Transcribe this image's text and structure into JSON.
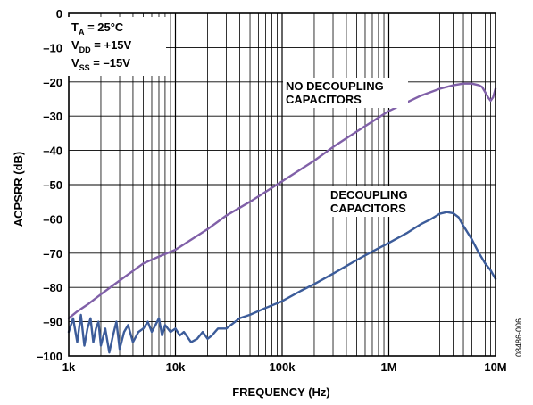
{
  "chart_data": {
    "type": "line",
    "xlabel": "FREQUENCY (Hz)",
    "ylabel": "ACPSRR (dB)",
    "x_scale": "log",
    "xlim": [
      1000,
      10000000
    ],
    "ylim": [
      -100,
      0
    ],
    "grid": true,
    "x_ticks": [
      {
        "value": 1000,
        "label": "1k"
      },
      {
        "value": 10000,
        "label": "10k"
      },
      {
        "value": 100000,
        "label": "100k"
      },
      {
        "value": 1000000,
        "label": "1M"
      },
      {
        "value": 10000000,
        "label": "10M"
      }
    ],
    "y_ticks": [
      {
        "value": 0,
        "label": "0"
      },
      {
        "value": -10,
        "label": "–10"
      },
      {
        "value": -20,
        "label": "–20"
      },
      {
        "value": -30,
        "label": "–30"
      },
      {
        "value": -40,
        "label": "–40"
      },
      {
        "value": -50,
        "label": "–50"
      },
      {
        "value": -60,
        "label": "–60"
      },
      {
        "value": -70,
        "label": "–70"
      },
      {
        "value": -80,
        "label": "–80"
      },
      {
        "value": -90,
        "label": "–90"
      },
      {
        "value": -100,
        "label": "–100"
      }
    ],
    "conditions": [
      {
        "name": "T",
        "sub": "A",
        "value": " = 25°C"
      },
      {
        "name": "V",
        "sub": "DD",
        "value": " = +15V"
      },
      {
        "name": "V",
        "sub": "SS",
        "value": " = –15V"
      }
    ],
    "series": [
      {
        "label_lines": [
          "NO DECOUPLING",
          "CAPACITORS"
        ],
        "color": "#8060a8",
        "x": [
          1000,
          1200,
          1500,
          2000,
          3000,
          5000,
          7000,
          10000,
          20000,
          30000,
          50000,
          100000,
          200000,
          300000,
          500000,
          1000000,
          2000000,
          3000000,
          4000000,
          5000000,
          6000000,
          7000000,
          7500000,
          8000000,
          8500000,
          9000000,
          9500000,
          10000000
        ],
        "y": [
          -89,
          -87,
          -85,
          -82,
          -78,
          -73,
          -71,
          -69,
          -63,
          -59,
          -55,
          -49,
          -43,
          -39,
          -34.5,
          -28.5,
          -24,
          -22,
          -21,
          -20.5,
          -20.5,
          -21,
          -21.5,
          -23,
          -24.5,
          -25.5,
          -24.5,
          -22
        ]
      },
      {
        "label_lines": [
          "DECOUPLING",
          "CAPACITORS"
        ],
        "color": "#3c5c9a",
        "x": [
          1000,
          1100,
          1200,
          1300,
          1400,
          1500,
          1600,
          1700,
          1800,
          1900,
          2000,
          2200,
          2400,
          2600,
          2800,
          3000,
          3300,
          3600,
          4000,
          4500,
          5000,
          5500,
          6000,
          6500,
          7000,
          7500,
          8000,
          9000,
          10000,
          11000,
          12000,
          14000,
          16000,
          18000,
          20000,
          22000,
          25000,
          30000,
          40000,
          50000,
          70000,
          100000,
          150000,
          200000,
          300000,
          500000,
          700000,
          1000000,
          1500000,
          2000000,
          2500000,
          3000000,
          3500000,
          4000000,
          4500000,
          5000000,
          6000000,
          7000000,
          8000000,
          9000000,
          10000000
        ],
        "y": [
          -93,
          -89,
          -96,
          -88,
          -97,
          -92,
          -89,
          -96,
          -92,
          -90,
          -97,
          -92,
          -99,
          -94,
          -90,
          -98,
          -93,
          -91,
          -96,
          -93,
          -92,
          -90,
          -93,
          -91,
          -89,
          -94,
          -91,
          -93,
          -92,
          -94,
          -93,
          -96,
          -95,
          -93,
          -95,
          -94,
          -92,
          -92,
          -89,
          -88,
          -86,
          -84,
          -81,
          -79,
          -76,
          -72,
          -69.5,
          -67,
          -64,
          -61.5,
          -60,
          -58.5,
          -58,
          -58.3,
          -59.5,
          -62,
          -66,
          -70,
          -73,
          -75,
          -77.5
        ]
      }
    ]
  },
  "figure_id": "08486-006"
}
